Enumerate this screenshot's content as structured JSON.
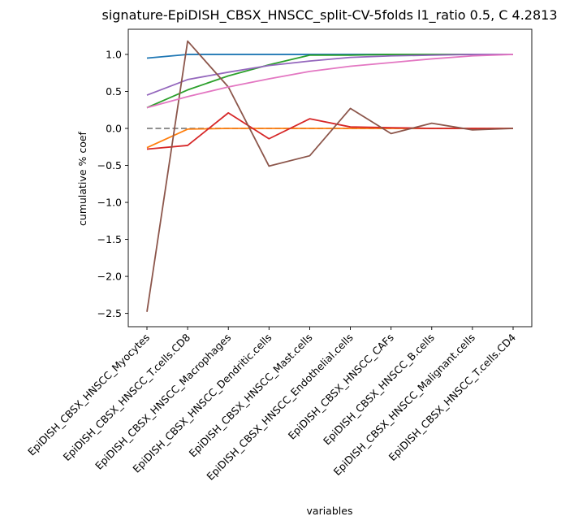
{
  "chart_data": {
    "type": "line",
    "title": "signature-EpiDISH_CBSX_HNSCC_split-CV-5folds l1_ratio 0.5, C 4.2813",
    "xlabel": "variables",
    "ylabel": "cumulative % coef",
    "ylim": [
      -2.68,
      1.34
    ],
    "yticks": [
      1.0,
      0.5,
      0.0,
      -0.5,
      -1.0,
      -1.5,
      -2.0,
      -2.5
    ],
    "ytick_labels": [
      "1.0",
      "0.5",
      "0.0",
      "−0.5",
      "−1.0",
      "−1.5",
      "−2.0",
      "−2.5"
    ],
    "grid": false,
    "legend": "none",
    "categories": [
      "EpiDISH_CBSX_HNSCC_Myocytes",
      "EpiDISH_CBSX_HNSCC_T.cells.CD8",
      "EpiDISH_CBSX_HNSCC_Macrophages",
      "EpiDISH_CBSX_HNSCC_Dendritic.cells",
      "EpiDISH_CBSX_HNSCC_Mast.cells",
      "EpiDISH_CBSX_HNSCC_Endothelial.cells",
      "EpiDISH_CBSX_HNSCC_CAFs",
      "EpiDISH_CBSX_HNSCC_B.cells",
      "EpiDISH_CBSX_HNSCC_Malignant.cells",
      "EpiDISH_CBSX_HNSCC_T.cells.CD4"
    ],
    "reference_line": {
      "y": 0.0,
      "color": "#808080",
      "style": "dashed"
    },
    "series": [
      {
        "color": "#1f77b4",
        "values": [
          0.95,
          1.0,
          1.0,
          1.0,
          1.0,
          1.0,
          1.0,
          1.0,
          1.0,
          1.0
        ]
      },
      {
        "color": "#ff7f0e",
        "values": [
          -0.26,
          -0.01,
          0.0,
          0.0,
          0.0,
          0.0,
          0.0,
          0.0,
          0.0,
          0.0
        ]
      },
      {
        "color": "#2ca02c",
        "values": [
          0.28,
          0.52,
          0.71,
          0.86,
          0.99,
          0.99,
          1.0,
          1.0,
          1.0,
          1.0
        ]
      },
      {
        "color": "#d62728",
        "values": [
          -0.28,
          -0.23,
          0.21,
          -0.14,
          0.13,
          0.02,
          0.01,
          0.0,
          0.0,
          0.0
        ]
      },
      {
        "color": "#9467bd",
        "values": [
          0.45,
          0.66,
          0.76,
          0.85,
          0.91,
          0.96,
          0.98,
          0.99,
          1.0,
          1.0
        ]
      },
      {
        "color": "#8c564b",
        "values": [
          -2.48,
          1.18,
          0.56,
          -0.51,
          -0.37,
          0.27,
          -0.07,
          0.07,
          -0.02,
          0.0
        ]
      },
      {
        "color": "#e377c2",
        "values": [
          0.28,
          0.43,
          0.56,
          0.67,
          0.77,
          0.84,
          0.89,
          0.94,
          0.98,
          1.0
        ]
      }
    ]
  }
}
